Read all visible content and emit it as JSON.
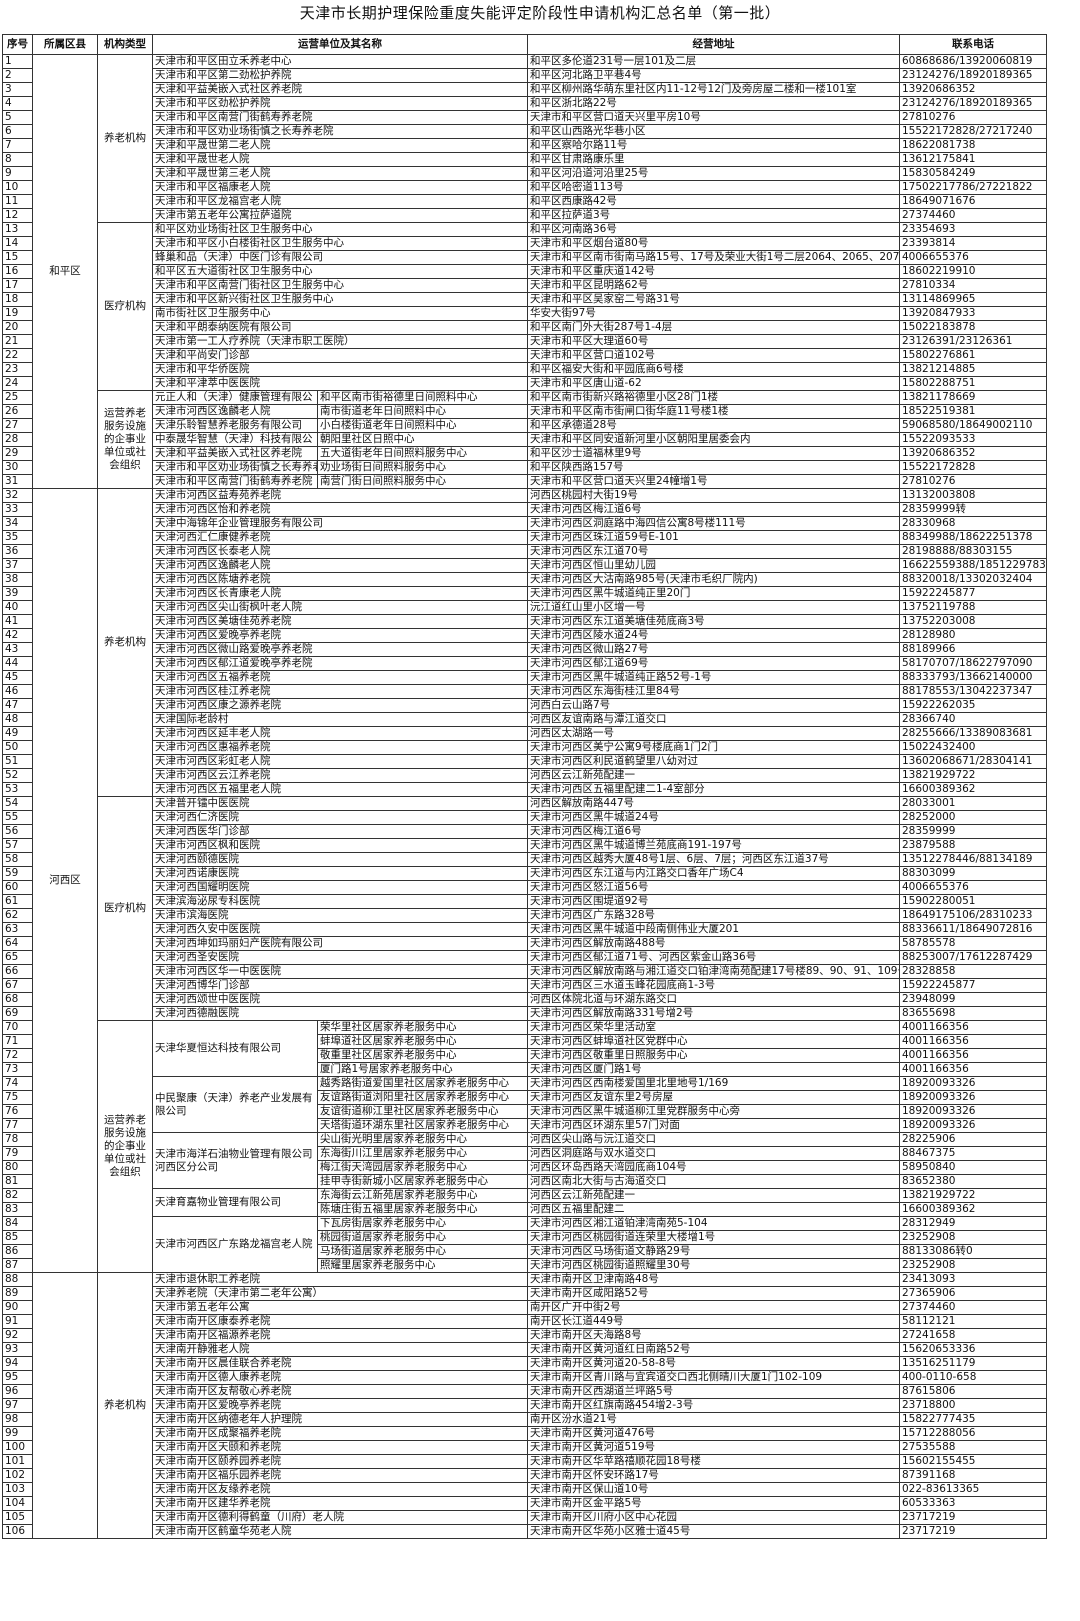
{
  "title": "天津市长期护理保险重度失能评定阶段性申请机构汇总名单（第一批）",
  "headers": [
    "序号",
    "所属区县",
    "机构类型",
    "运营单位及其名称",
    "经营地址",
    "联系电话"
  ],
  "districts": [
    {
      "name": "和平区",
      "groups": [
        {
          "type": "养老机构",
          "rows": [
            [
              "1",
              "天津市和平区田立禾养老中心",
              "和平区多伦道231号一层101及二层",
              "60868686/13920060819"
            ],
            [
              "2",
              "天津市和平区第二劲松护养院",
              "和平区河北路卫平巷4号",
              "23124276/18920189365"
            ],
            [
              "3",
              "天津和平益美嵌入式社区养老院",
              "和平区柳州路华萌东里社区内11-12号12门及旁房屋二楼和一楼101室",
              "13920686352"
            ],
            [
              "4",
              "天津市和平区劲松护养院",
              "和平区浙北路22号",
              "23124276/18920189365"
            ],
            [
              "5",
              "天津市和平区南营门街鹤寿养老院",
              "天津市和平区营口道天兴里平房10号",
              "27810276"
            ],
            [
              "6",
              "天津市和平区劝业场街慎之长寿养老院",
              "和平区山西路光华巷小区",
              "15522172828/27217240"
            ],
            [
              "7",
              "天津和平晟世第二老人院",
              "和平区察哈尔路11号",
              "18622081738"
            ],
            [
              "8",
              "天津和平晟世老人院",
              "和平区甘肃路康乐里",
              "13612175841"
            ],
            [
              "9",
              "天津和平晟世第三老人院",
              "和平区河沿道河沿里25号",
              "15830584249"
            ],
            [
              "10",
              "天津市和平区福康老人院",
              "和平区哈密道113号",
              "17502217786/27221822"
            ],
            [
              "11",
              "天津市和平区龙福宫老人院",
              "和平区西康路42号",
              "18649071676"
            ],
            [
              "12",
              "天津市第五老年公寓拉萨道院",
              "和平区拉萨道3号",
              "27374460"
            ]
          ]
        },
        {
          "type": "医疗机构",
          "rows": [
            [
              "13",
              "和平区劝业场街社区卫生服务中心",
              "和平区河南路36号",
              "23354693"
            ],
            [
              "14",
              "天津市和平区小白楼街社区卫生服务中心",
              "天津市和平区烟台道80号",
              "23393814"
            ],
            [
              "15",
              "蜂巢和品（天津）中医门诊有限公司",
              "天津市和平区南市街南马路15号、17号及荣业大街1号二层2064、2065、2072、2",
              "4006655376"
            ],
            [
              "16",
              "和平区五大道街社区卫生服务中心",
              "天津市和平区重庆道142号",
              "18602219910"
            ],
            [
              "17",
              "天津市和平区南营门街社区卫生服务中心",
              "天津市和平区昆明路62号",
              "27810334"
            ],
            [
              "18",
              "天津市和平区新兴街社区卫生服务中心",
              "天津市和平区吴家窑二号路31号",
              "13114869965"
            ],
            [
              "19",
              "南市街社区卫生服务中心",
              "华安大街97号",
              "13920847933"
            ],
            [
              "20",
              "天津和平朗泰纳医院有限公司",
              "和平区南门外大街287号1-4层",
              "15022183878"
            ],
            [
              "21",
              "天津市第一工人疗养院（天津市职工医院）",
              "天津市和平区大理道60号",
              "23126391/23126361"
            ],
            [
              "22",
              "天津和平尚安门诊部",
              "天津市和平区营口道102号",
              "15802276861"
            ],
            [
              "23",
              "天津市和平华侨医院",
              "和平区福安大街和平园底商6号楼",
              "13821214885"
            ],
            [
              "24",
              "天津和平津萃中医医院",
              "天津市和平区唐山道-62",
              "15802288751"
            ]
          ]
        },
        {
          "type": "运营养老服务设施的企事业单位或社会组织",
          "split": true,
          "units": [
            {
              "org": "元正人和（天津）健康管理有限公",
              "rows": [
                [
                  "25",
                  "和平区南市街裕德里日间照料中心",
                  "和平区南市街新兴路裕德里小区28门1楼",
                  "13821178669"
                ]
              ]
            },
            {
              "org": "天津市河西区逸麟老人院",
              "rows": [
                [
                  "26",
                  "南市街道老年日间照料中心",
                  "天津市和平区南市街闸口街华庭11号楼1楼",
                  "18522519381"
                ]
              ]
            },
            {
              "org": "天津乐聆智慧养老服务有限公司",
              "rows": [
                [
                  "27",
                  "小白楼街道老年日间照料中心",
                  "和平区承德道28号",
                  "59068580/18649002110"
                ]
              ]
            },
            {
              "org": "中泰晟华智慧（天津）科技有限公",
              "rows": [
                [
                  "28",
                  "朝阳里社区日照中心",
                  "天津市和平区同安道新河里小区朝阳里居委会内",
                  "15522093533"
                ]
              ]
            },
            {
              "org": "天津和平益美嵌入式社区养老院",
              "rows": [
                [
                  "29",
                  "五大道街老年日间照料服务中心",
                  "和平区沙士道福林里9号",
                  "13920686352"
                ]
              ]
            },
            {
              "org": "天津市和平区劝业场街慎之长寿养老院",
              "rows": [
                [
                  "30",
                  "劝业场街日间照料服务中心",
                  "和平区陕西路157号",
                  "15522172828"
                ]
              ]
            },
            {
              "org": "天津市和平区南营门街鹤寿养老院",
              "rows": [
                [
                  "31",
                  "南营门街日间照料服务中心",
                  "天津市和平区营口道天兴里24幢增1号",
                  "27810276"
                ]
              ]
            }
          ]
        }
      ]
    },
    {
      "name": "河西区",
      "groups": [
        {
          "type": "养老机构",
          "rows": [
            [
              "32",
              "天津市河西区益寿苑养老院",
              "河西区桃园村大街19号",
              "13132003808"
            ],
            [
              "33",
              "天津市河西区怡和养老院",
              "天津市河西区梅江道6号",
              "28359999转"
            ],
            [
              "34",
              "天津中海锦年企业管理服务有限公司",
              "天津市河西区洞庭路中海四信公寓8号楼111号",
              "28330968"
            ],
            [
              "35",
              "天津河西汇仁康健养老院",
              "天津市河西区珠江道59号E-101",
              "88349988/18622251378"
            ],
            [
              "36",
              "天津市河西区长泰老人院",
              "天津市河西区东江道70号",
              "28198888/88303155"
            ],
            [
              "37",
              "天津市河西区逸麟老人院",
              "天津市河西区恒山里幼儿园",
              "16622559388/18512297836"
            ],
            [
              "38",
              "天津市河西区陈塘养老院",
              "天津市河西区大沽南路985号(天津市毛织厂院内)",
              "88320018/13302032404"
            ],
            [
              "39",
              "天津市河西区长青康老人院",
              "天津市河西区黑牛城道纯正里20门",
              "15922245877"
            ],
            [
              "40",
              "天津市河西区尖山街枫叶老人院",
              "沅江道红山里小区增一号",
              "13752119788"
            ],
            [
              "41",
              "天津市河西区美塘佳苑养老院",
              "天津市河西区东江道美塘佳苑底商3号",
              "13752203008"
            ],
            [
              "42",
              "天津市河西区爱晚亭养老院",
              "天津市河西区陵水道24号",
              "28128980"
            ],
            [
              "43",
              "天津市河西区微山路爱晚亭养老院",
              "天津市河西区微山路27号",
              "88189966"
            ],
            [
              "44",
              "天津市河西区郁江道爱晚亭养老院",
              "天津市河西区郁江道69号",
              "58170707/18622797090"
            ],
            [
              "45",
              "天津市河西区五福养老院",
              "天津市河西区黑牛城道纯正路52号-1号",
              "88333793/13662140000"
            ],
            [
              "46",
              "天津市河西区桂江养老院",
              "天津市河西区东海街桂江里84号",
              "88178553/13042237347"
            ],
            [
              "47",
              "天津市河西区康之源养老院",
              "河西白云山路7号",
              "15922262035"
            ],
            [
              "48",
              "天津国际老龄村",
              "河西区友谊南路与潭江道交口",
              "28366740"
            ],
            [
              "49",
              "天津市河西区延丰老人院",
              "河西区太湖路一号",
              "28255666/13389083681"
            ],
            [
              "50",
              "天津市河西区惠福养老院",
              "天津市河西区美宁公寓9号楼底商1门2门",
              "15022432400"
            ],
            [
              "51",
              "天津市河西区彩虹老人院",
              "天津市河西区利民道鹤望里八幼对过",
              "13602068671/28304141"
            ],
            [
              "52",
              "天津市河西区云江养老院",
              "河西区云江新苑配建一",
              "13821929722"
            ],
            [
              "53",
              "天津市河西区五福里老人院",
              "天津市河西区五福里配建二1-4室部分",
              "16600389362"
            ]
          ]
        },
        {
          "type": "医疗机构",
          "rows": [
            [
              "54",
              "天津普开镭中医医院",
              "河西区解放南路447号",
              "28033001"
            ],
            [
              "55",
              "天津河西仁济医院",
              "天津市河西区黑牛城道24号",
              "28252000"
            ],
            [
              "56",
              "天津河西医华门诊部",
              "天津市河西区梅江道6号",
              "28359999"
            ],
            [
              "57",
              "天津市河西区枫和医院",
              "天津市河西区黑牛城道博兰苑底商191-197号",
              "23879588"
            ],
            [
              "58",
              "天津河西颐德医院",
              "天津市河西区越秀大厦48号1层、6层、7层；河西区东江道37号",
              "13512278446/88134189"
            ],
            [
              "59",
              "天津河西诺康医院",
              "天津市河西区东江道与内江路交口香年广场C4",
              "88303099"
            ],
            [
              "60",
              "天津河西国耀明医院",
              "天津市河西区怒江道56号",
              "4006655376"
            ],
            [
              "61",
              "天津滨海泌尿专科医院",
              "天津市河西区围堤道92号",
              "15902280051"
            ],
            [
              "62",
              "天津市滨海医院",
              "天津市河西区广东路328号",
              "18649175106/28310233"
            ],
            [
              "63",
              "天津河西久安中医医院",
              "天津市河西区黑牛城道中段南侧伟业大厦201",
              "88336611/18649072816"
            ],
            [
              "64",
              "天津河西坤如玛丽妇产医院有限公司",
              "天津市河西区解放南路488号",
              "58785578"
            ],
            [
              "65",
              "天津河西圣安医院",
              "天津市河西区郁江道71号、河西区紫金山路36号",
              "88253007/17612287429"
            ],
            [
              "66",
              "天津市河西区华一中医医院",
              "天津市河西区解放南路与湘江道交口铂津湾南苑配建17号楼89、90、91、109号",
              "28328858"
            ],
            [
              "67",
              "天津河西博华门诊部",
              "天津市河西区三水道玉峰花园底商1-3号",
              "15922245877"
            ],
            [
              "68",
              "天津河西颂世中医医院",
              "河西区体院北道与环湖东路交口",
              "23948099"
            ],
            [
              "69",
              "天津河西德融医院",
              "天津市河西区解放南路331号增2号",
              "83655698"
            ]
          ]
        },
        {
          "type": "运营养老服务设施的企事业单位或社会组织",
          "split": true,
          "units": [
            {
              "org": "天津华夏恒达科技有限公司",
              "rows": [
                [
                  "70",
                  "荣华里社区居家养老服务中心",
                  "天津市河西区荣华里活动室",
                  "4001166356"
                ],
                [
                  "71",
                  "蚌埠道社区居家养老服务中心",
                  "天津市河西区蚌埠道社区党群中心",
                  "4001166356"
                ],
                [
                  "72",
                  "敬重里社区居家养老服务中心",
                  "天津市河西区敬重里日照服务中心",
                  "4001166356"
                ],
                [
                  "73",
                  "厦门路1号居家养老服务中心",
                  "天津市河西区厦门路1号",
                  "4001166356"
                ]
              ]
            },
            {
              "org": "中民聚康（天津）养老产业发展有限公司",
              "rows": [
                [
                  "74",
                  "越秀路街道爱国里社区居家养老服务中心",
                  "天津市河西区西南楼爱国里北里地号1/169",
                  "18920093326"
                ],
                [
                  "75",
                  "友谊路街道浏阳里社区居家养老服务中心",
                  "天津市河西区友谊东里2号房屋",
                  "18920093326"
                ],
                [
                  "76",
                  "友谊街道柳江里社区居家养老服务中心",
                  "天津市河西区黑牛城道柳江里党群服务中心旁",
                  "18920093326"
                ],
                [
                  "77",
                  "天塔街道环湖东里社区居家养老服务中心",
                  "天津市河西区环湖东里57门对面",
                  "18920093326"
                ]
              ]
            },
            {
              "org": "天津市海洋石油物业管理有限公司河西区分公司",
              "rows": [
                [
                  "78",
                  "尖山街光明里居家养老服务中心",
                  "河西区尖山路与沅江道交口",
                  "28225906"
                ],
                [
                  "79",
                  "东海街川江里居家养老服务中心",
                  "河西区洞庭路与双水道交口",
                  "88467375"
                ],
                [
                  "80",
                  "梅江街天湾园居家养老服务中心",
                  "河西区环岛西路天湾园底商104号",
                  "58950840"
                ],
                [
                  "81",
                  "挂甲寺街新城小区居家养老服务中心",
                  "河西区南北大街与古海道交口",
                  "83652380"
                ]
              ]
            },
            {
              "org": "天津育嘉物业管理有限公司",
              "rows": [
                [
                  "82",
                  "东海街云江新苑居家养老服务中心",
                  "河西区云江新苑配建一",
                  "13821929722"
                ],
                [
                  "83",
                  "陈塘庄街五福里居家养老服务中心",
                  "河西区五福里配建二",
                  "16600389362"
                ]
              ]
            },
            {
              "org": "天津市河西区广东路龙福宫老人院",
              "rows": [
                [
                  "84",
                  "下瓦房街居家养老服务中心",
                  "天津市河西区湘江道铂津湾南苑5-104",
                  "28312949"
                ],
                [
                  "85",
                  "桃园街道居家养老服务中心",
                  "天津市河西区桃园街道连荣里大楼增1号",
                  "23252908"
                ],
                [
                  "86",
                  "马场街道居家养老服务中心",
                  "天津市河西区马场街道文静路29号",
                  "88133086转0"
                ],
                [
                  "87",
                  "照耀里居家养老服务中心",
                  "天津市河西区桃园街道照耀里30号",
                  "23252908"
                ]
              ]
            }
          ]
        }
      ]
    },
    {
      "name": "",
      "groups": [
        {
          "type": "养老机构",
          "rows": [
            [
              "88",
              "天津市退休职工养老院",
              "天津市南开区卫津南路48号",
              "23413093"
            ],
            [
              "89",
              "天津养老院（天津市第二老年公寓）",
              "天津市南开区咸阳路52号",
              "27365906"
            ],
            [
              "90",
              "天津市第五老年公寓",
              "南开区广开中街2号",
              "27374460"
            ],
            [
              "91",
              "天津市南开区康泰养老院",
              "南开区长江道449号",
              "58112121"
            ],
            [
              "92",
              "天津市南开区福源养老院",
              "天津市南开区天海路8号",
              "27241658"
            ],
            [
              "93",
              "天津南开静雅老人院",
              "天津市南开区黄河道红日南路52号",
              "15620653336"
            ],
            [
              "94",
              "天津市南开区晨佳联合养老院",
              "天津市南开区黄河道20-58-8号",
              "13516251179"
            ],
            [
              "95",
              "天津市南开区德人康养老院",
              "天津市南开区青川路与宜宾道交口西北侧晴川大厦1门102-109",
              "400-0110-658"
            ],
            [
              "96",
              "天津市南开区友帮敬心养老院",
              "天津市南开区西湖道兰坪路5号",
              "87615806"
            ],
            [
              "97",
              "天津市南开区爱晚亭养老院",
              "天津市南开区红旗南路454增2-3号",
              "23718800"
            ],
            [
              "98",
              "天津市南开区纳德老年人护理院",
              "南开区汾水道21号",
              "15822777435"
            ],
            [
              "99",
              "天津市南开区成聚福养老院",
              "天津市南开区黄河道476号",
              "15712288056"
            ],
            [
              "100",
              "天津市南开区天颐和养老院",
              "天津市南开区黄河道519号",
              "27535588"
            ],
            [
              "101",
              "天津市南开区颐养园养老院",
              "天津市南开区华苹路禧顺花园18号楼",
              "15602155455"
            ],
            [
              "102",
              "天津市南开区福乐园养老院",
              "天津市南开区怀安环路17号",
              "87391168"
            ],
            [
              "103",
              "天津市南开区友缘养老院",
              "天津市南开区保山道10号",
              "022-83613365"
            ],
            [
              "104",
              "天津市南开区建华养老院",
              "天津市南开区金平路5号",
              "60533363"
            ],
            [
              "105",
              "天津市南开区德利得鹤童（川府）老人院",
              "天津市南开区川府小区中心花园",
              "23717219"
            ],
            [
              "106",
              "天津市南开区鹤童华苑老人院",
              "天津市南开区华苑小区雅士道45号",
              "23717219"
            ]
          ]
        }
      ]
    }
  ]
}
